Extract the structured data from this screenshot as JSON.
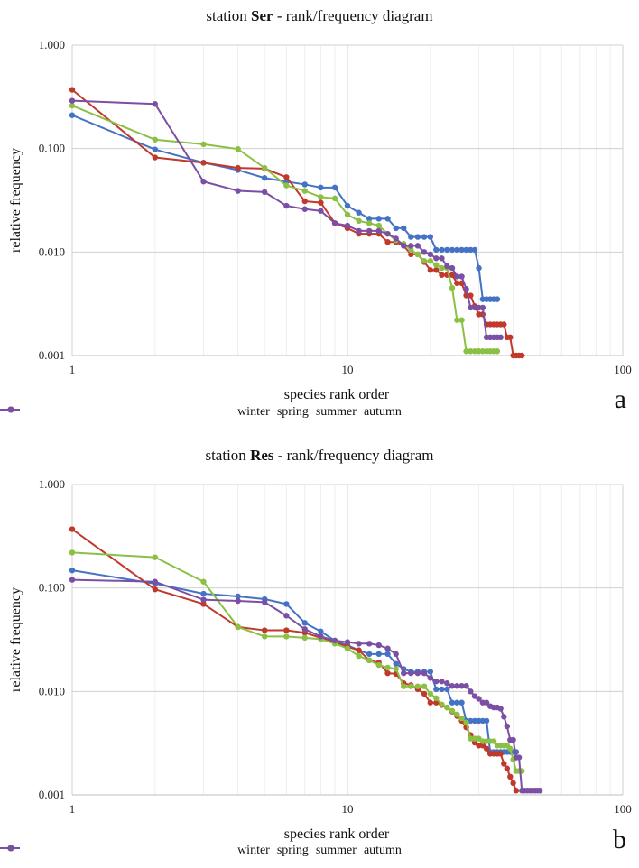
{
  "chart_data": [
    {
      "type": "line",
      "panel_label": "a",
      "title_prefix": "station ",
      "title_bold": "Ser",
      "title_suffix": " - rank/frequency diagram",
      "xlabel": "species rank order",
      "ylabel": "relative frequency",
      "xscale": "log",
      "yscale": "log",
      "xlim": [
        1,
        100
      ],
      "ylim": [
        0.001,
        1
      ],
      "xticks": [
        "1",
        "10",
        "100"
      ],
      "yticks": [
        "0.001",
        "0.010",
        "0.100",
        "1.000"
      ],
      "grid": true,
      "legend": "bottom",
      "series": [
        {
          "name": "winter",
          "color": "#4472c4",
          "x": [
            1,
            2,
            3,
            4,
            5,
            6,
            7,
            8,
            9,
            10,
            11,
            12,
            13,
            14,
            15,
            16,
            17,
            18,
            19,
            20,
            21,
            22,
            23,
            24,
            25,
            26,
            27,
            28,
            29,
            30,
            31,
            32,
            33,
            34,
            35
          ],
          "y": [
            0.21,
            0.098,
            0.073,
            0.062,
            0.052,
            0.048,
            0.045,
            0.042,
            0.042,
            0.028,
            0.024,
            0.021,
            0.021,
            0.021,
            0.017,
            0.017,
            0.014,
            0.014,
            0.014,
            0.014,
            0.0105,
            0.0105,
            0.0105,
            0.0105,
            0.0105,
            0.0105,
            0.0105,
            0.0105,
            0.0105,
            0.007,
            0.0035,
            0.0035,
            0.0035,
            0.0035,
            0.0035
          ]
        },
        {
          "name": "spring",
          "color": "#c0392b",
          "x": [
            1,
            2,
            3,
            4,
            5,
            6,
            7,
            8,
            9,
            10,
            11,
            12,
            13,
            14,
            15,
            16,
            17,
            18,
            19,
            20,
            21,
            22,
            23,
            24,
            25,
            26,
            27,
            28,
            29,
            30,
            31,
            32,
            33,
            34,
            35,
            36,
            37,
            38,
            39,
            40,
            41,
            42,
            43
          ],
          "y": [
            0.37,
            0.082,
            0.073,
            0.065,
            0.064,
            0.053,
            0.031,
            0.03,
            0.019,
            0.017,
            0.015,
            0.015,
            0.015,
            0.0125,
            0.0125,
            0.0115,
            0.0095,
            0.0095,
            0.008,
            0.0067,
            0.0067,
            0.006,
            0.006,
            0.006,
            0.005,
            0.005,
            0.0038,
            0.0038,
            0.003,
            0.0025,
            0.0025,
            0.002,
            0.002,
            0.002,
            0.002,
            0.002,
            0.002,
            0.0015,
            0.0015,
            0.001,
            0.001,
            0.001,
            0.001
          ]
        },
        {
          "name": "summer",
          "color": "#8cc044",
          "x": [
            1,
            2,
            3,
            4,
            5,
            6,
            7,
            8,
            9,
            10,
            11,
            12,
            13,
            14,
            15,
            16,
            17,
            18,
            19,
            20,
            21,
            22,
            23,
            24,
            25,
            26,
            27,
            28,
            29,
            30,
            31,
            32,
            33,
            34,
            35
          ],
          "y": [
            0.26,
            0.122,
            0.11,
            0.099,
            0.065,
            0.044,
            0.039,
            0.034,
            0.033,
            0.023,
            0.02,
            0.019,
            0.018,
            0.015,
            0.013,
            0.012,
            0.0105,
            0.0095,
            0.0082,
            0.0082,
            0.0075,
            0.007,
            0.007,
            0.0045,
            0.0022,
            0.0022,
            0.0011,
            0.0011,
            0.0011,
            0.0011,
            0.0011,
            0.0011,
            0.0011,
            0.0011,
            0.0011
          ]
        },
        {
          "name": "autumn",
          "color": "#7b4fa3",
          "x": [
            1,
            2,
            3,
            4,
            5,
            6,
            7,
            8,
            9,
            10,
            11,
            12,
            13,
            14,
            15,
            16,
            17,
            18,
            19,
            20,
            21,
            22,
            23,
            24,
            25,
            26,
            27,
            28,
            29,
            30,
            31,
            32,
            33,
            34,
            35,
            36
          ],
          "y": [
            0.29,
            0.27,
            0.048,
            0.039,
            0.038,
            0.028,
            0.026,
            0.025,
            0.019,
            0.018,
            0.016,
            0.016,
            0.016,
            0.015,
            0.0135,
            0.0115,
            0.0115,
            0.0115,
            0.01,
            0.0095,
            0.0087,
            0.0087,
            0.0073,
            0.007,
            0.0058,
            0.0058,
            0.0044,
            0.0029,
            0.0029,
            0.0029,
            0.0029,
            0.0015,
            0.0015,
            0.0015,
            0.0015,
            0.0015
          ]
        }
      ]
    },
    {
      "type": "line",
      "panel_label": "b",
      "title_prefix": "station ",
      "title_bold": "Res",
      "title_suffix": " - rank/frequency diagram",
      "xlabel": "species rank order",
      "ylabel": "relative frequency",
      "xscale": "log",
      "yscale": "log",
      "xlim": [
        1,
        100
      ],
      "ylim": [
        0.001,
        1
      ],
      "xticks": [
        "1",
        "10",
        "100"
      ],
      "yticks": [
        "0.001",
        "0.010",
        "0.100",
        "1.000"
      ],
      "grid": true,
      "legend": "bottom",
      "series": [
        {
          "name": "winter",
          "color": "#4472c4",
          "x": [
            1,
            2,
            3,
            4,
            5,
            6,
            7,
            8,
            9,
            10,
            11,
            12,
            13,
            14,
            15,
            16,
            17,
            18,
            19,
            20,
            21,
            22,
            23,
            24,
            25,
            26,
            27,
            28,
            29,
            30,
            31,
            32,
            33,
            34,
            35,
            36,
            37,
            38,
            39,
            40,
            41
          ],
          "y": [
            0.148,
            0.11,
            0.088,
            0.083,
            0.078,
            0.07,
            0.046,
            0.038,
            0.031,
            0.028,
            0.025,
            0.023,
            0.023,
            0.023,
            0.0185,
            0.0165,
            0.0155,
            0.0155,
            0.0155,
            0.0155,
            0.0105,
            0.0105,
            0.0105,
            0.0078,
            0.0078,
            0.0078,
            0.0052,
            0.0052,
            0.0052,
            0.0052,
            0.0052,
            0.0052,
            0.0026,
            0.0026,
            0.0026,
            0.0026,
            0.0026,
            0.0026,
            0.0026,
            0.0026,
            0.0026
          ]
        },
        {
          "name": "spring",
          "color": "#c0392b",
          "x": [
            1,
            2,
            3,
            4,
            5,
            6,
            7,
            8,
            9,
            10,
            11,
            12,
            13,
            14,
            15,
            16,
            17,
            18,
            19,
            20,
            21,
            22,
            23,
            24,
            25,
            26,
            27,
            28,
            29,
            30,
            31,
            32,
            33,
            34,
            35,
            36,
            37,
            38,
            39,
            40,
            41
          ],
          "y": [
            0.37,
            0.097,
            0.07,
            0.042,
            0.039,
            0.039,
            0.037,
            0.033,
            0.03,
            0.027,
            0.025,
            0.02,
            0.019,
            0.015,
            0.0148,
            0.012,
            0.0115,
            0.0105,
            0.0095,
            0.0078,
            0.0078,
            0.0074,
            0.007,
            0.0064,
            0.0058,
            0.0052,
            0.0045,
            0.0038,
            0.0032,
            0.003,
            0.003,
            0.0028,
            0.0025,
            0.0025,
            0.0025,
            0.0025,
            0.002,
            0.0018,
            0.0015,
            0.0013,
            0.0011
          ]
        },
        {
          "name": "summer",
          "color": "#8cc044",
          "x": [
            1,
            2,
            3,
            4,
            5,
            6,
            7,
            8,
            9,
            10,
            11,
            12,
            13,
            14,
            15,
            16,
            17,
            18,
            19,
            20,
            21,
            22,
            23,
            24,
            25,
            26,
            27,
            28,
            29,
            30,
            31,
            32,
            33,
            34,
            35,
            36,
            37,
            38,
            39,
            40,
            41,
            42,
            43
          ],
          "y": [
            0.22,
            0.198,
            0.115,
            0.042,
            0.034,
            0.034,
            0.033,
            0.032,
            0.029,
            0.026,
            0.022,
            0.02,
            0.018,
            0.017,
            0.0165,
            0.0112,
            0.0112,
            0.0112,
            0.0112,
            0.0095,
            0.0086,
            0.0075,
            0.007,
            0.0065,
            0.006,
            0.0055,
            0.005,
            0.0035,
            0.0035,
            0.0035,
            0.0033,
            0.0033,
            0.0033,
            0.0033,
            0.003,
            0.003,
            0.003,
            0.003,
            0.0028,
            0.0022,
            0.0017,
            0.0017,
            0.0017
          ]
        },
        {
          "name": "autumn",
          "color": "#7b4fa3",
          "x": [
            1,
            2,
            3,
            4,
            5,
            6,
            7,
            8,
            9,
            10,
            11,
            12,
            13,
            14,
            15,
            16,
            17,
            18,
            19,
            20,
            21,
            22,
            23,
            24,
            25,
            26,
            27,
            28,
            29,
            30,
            31,
            32,
            33,
            34,
            35,
            36,
            37,
            38,
            39,
            40,
            41,
            42,
            43,
            44,
            45,
            46,
            47,
            48,
            49,
            50
          ],
          "y": [
            0.12,
            0.115,
            0.077,
            0.075,
            0.073,
            0.054,
            0.04,
            0.034,
            0.031,
            0.03,
            0.029,
            0.029,
            0.028,
            0.026,
            0.023,
            0.015,
            0.015,
            0.015,
            0.015,
            0.0135,
            0.0125,
            0.0125,
            0.012,
            0.0113,
            0.0113,
            0.0113,
            0.0113,
            0.01,
            0.009,
            0.0085,
            0.0078,
            0.0078,
            0.0072,
            0.007,
            0.007,
            0.0068,
            0.0057,
            0.0046,
            0.0034,
            0.0034,
            0.0023,
            0.0023,
            0.0011,
            0.0011,
            0.0011,
            0.0011,
            0.0011,
            0.0011,
            0.0011,
            0.0011
          ]
        }
      ]
    }
  ]
}
